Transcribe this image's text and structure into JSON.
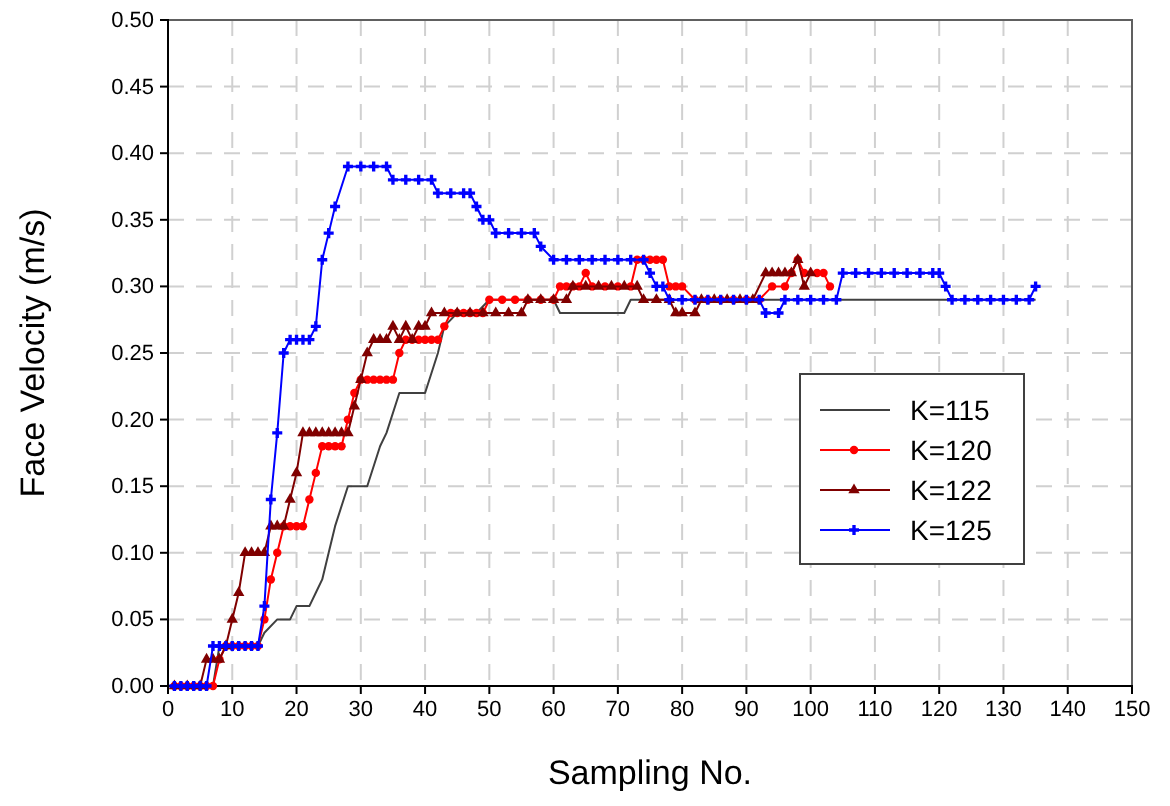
{
  "chart_data": {
    "type": "line",
    "xlabel": "Sampling No.",
    "ylabel": "Face Velocity (m/s)",
    "xlim": [
      0,
      150
    ],
    "xticks": [
      0,
      10,
      20,
      30,
      40,
      50,
      60,
      70,
      80,
      90,
      100,
      110,
      120,
      130,
      140,
      150
    ],
    "ylim": [
      0,
      0.5
    ],
    "yticks": [
      {
        "value": 0,
        "label": "0.00"
      },
      {
        "value": 0.05,
        "label": "0.05"
      },
      {
        "value": 0.1,
        "label": "0.10"
      },
      {
        "value": 0.15,
        "label": "0.15"
      },
      {
        "value": 0.2,
        "label": "0.20"
      },
      {
        "value": 0.25,
        "label": "0.25"
      },
      {
        "value": 0.3,
        "label": "0.30"
      },
      {
        "value": 0.35,
        "label": "0.35"
      },
      {
        "value": 0.4,
        "label": "0.40"
      },
      {
        "value": 0.45,
        "label": "0.45"
      },
      {
        "value": 0.5,
        "label": "0.50"
      }
    ],
    "grid": true,
    "legend": "right",
    "series": [
      {
        "name": "K=115",
        "color": "#404040",
        "marker": "none",
        "x": [
          1,
          7,
          8,
          14,
          15,
          17,
          19,
          20,
          22,
          23,
          24,
          25,
          26,
          28,
          31,
          33,
          34,
          36,
          40,
          42,
          43,
          45,
          48,
          50,
          60,
          61,
          71,
          72,
          135
        ],
        "values": [
          0,
          0,
          0.03,
          0.03,
          0.04,
          0.05,
          0.05,
          0.06,
          0.06,
          0.07,
          0.08,
          0.1,
          0.12,
          0.15,
          0.15,
          0.18,
          0.19,
          0.22,
          0.22,
          0.25,
          0.27,
          0.28,
          0.28,
          0.29,
          0.29,
          0.28,
          0.28,
          0.29,
          0.29
        ]
      },
      {
        "name": "K=120",
        "color": "#ff0000",
        "marker": "circle",
        "x": [
          1,
          2,
          3,
          4,
          5,
          6,
          7,
          8,
          9,
          10,
          11,
          12,
          13,
          14,
          15,
          16,
          17,
          18,
          19,
          20,
          21,
          22,
          23,
          24,
          25,
          26,
          27,
          28,
          29,
          30,
          31,
          32,
          33,
          34,
          35,
          36,
          37,
          38,
          39,
          40,
          41,
          42,
          43,
          44,
          45,
          46,
          47,
          48,
          49,
          50,
          52,
          54,
          56,
          58,
          60,
          61,
          62,
          63,
          64,
          65,
          66,
          68,
          70,
          72,
          73,
          74,
          75,
          76,
          77,
          78,
          79,
          80,
          82,
          84,
          86,
          88,
          90,
          92,
          94,
          96,
          97,
          98,
          99,
          101,
          102,
          103
        ],
        "values": [
          0,
          0,
          0,
          0,
          0,
          0,
          0,
          0.02,
          0.03,
          0.03,
          0.03,
          0.03,
          0.03,
          0.03,
          0.05,
          0.08,
          0.1,
          0.12,
          0.12,
          0.12,
          0.12,
          0.14,
          0.16,
          0.18,
          0.18,
          0.18,
          0.18,
          0.2,
          0.22,
          0.23,
          0.23,
          0.23,
          0.23,
          0.23,
          0.23,
          0.25,
          0.26,
          0.26,
          0.26,
          0.26,
          0.26,
          0.26,
          0.27,
          0.28,
          0.28,
          0.28,
          0.28,
          0.28,
          0.28,
          0.29,
          0.29,
          0.29,
          0.29,
          0.29,
          0.29,
          0.3,
          0.3,
          0.3,
          0.3,
          0.31,
          0.3,
          0.3,
          0.3,
          0.3,
          0.32,
          0.32,
          0.32,
          0.32,
          0.32,
          0.3,
          0.3,
          0.3,
          0.29,
          0.29,
          0.29,
          0.29,
          0.29,
          0.29,
          0.3,
          0.3,
          0.31,
          0.32,
          0.31,
          0.31,
          0.31,
          0.3
        ]
      },
      {
        "name": "K=122",
        "color": "#800000",
        "marker": "triangle",
        "x": [
          1,
          3,
          5,
          6,
          7,
          8,
          9,
          10,
          11,
          12,
          13,
          14,
          15,
          16,
          17,
          18,
          19,
          20,
          21,
          22,
          23,
          24,
          25,
          26,
          27,
          28,
          29,
          30,
          31,
          32,
          33,
          34,
          35,
          36,
          37,
          38,
          39,
          40,
          41,
          43,
          45,
          47,
          49,
          51,
          53,
          55,
          56,
          58,
          60,
          62,
          63,
          65,
          67,
          69,
          71,
          73,
          74,
          76,
          78,
          79,
          80,
          82,
          83,
          85,
          87,
          89,
          91,
          93,
          94,
          95,
          96,
          97,
          98,
          99,
          100
        ],
        "values": [
          0,
          0,
          0,
          0.02,
          0.02,
          0.02,
          0.03,
          0.05,
          0.07,
          0.1,
          0.1,
          0.1,
          0.1,
          0.12,
          0.12,
          0.12,
          0.14,
          0.16,
          0.19,
          0.19,
          0.19,
          0.19,
          0.19,
          0.19,
          0.19,
          0.19,
          0.21,
          0.23,
          0.25,
          0.26,
          0.26,
          0.26,
          0.27,
          0.26,
          0.27,
          0.26,
          0.27,
          0.27,
          0.28,
          0.28,
          0.28,
          0.28,
          0.28,
          0.28,
          0.28,
          0.28,
          0.29,
          0.29,
          0.29,
          0.29,
          0.3,
          0.3,
          0.3,
          0.3,
          0.3,
          0.3,
          0.29,
          0.29,
          0.29,
          0.28,
          0.28,
          0.28,
          0.29,
          0.29,
          0.29,
          0.29,
          0.29,
          0.31,
          0.31,
          0.31,
          0.31,
          0.31,
          0.32,
          0.3,
          0.31
        ]
      },
      {
        "name": "K=125",
        "color": "#0000ff",
        "marker": "cross",
        "x": [
          1,
          2,
          3,
          4,
          5,
          6,
          7,
          8,
          9,
          10,
          11,
          12,
          13,
          14,
          15,
          16,
          17,
          18,
          19,
          20,
          21,
          22,
          23,
          24,
          25,
          26,
          28,
          30,
          32,
          34,
          35,
          37,
          39,
          41,
          42,
          44,
          46,
          47,
          48,
          49,
          50,
          51,
          53,
          55,
          57,
          58,
          60,
          62,
          64,
          66,
          68,
          70,
          72,
          74,
          75,
          76,
          77,
          78,
          80,
          82,
          84,
          86,
          88,
          90,
          92,
          93,
          95,
          96,
          98,
          100,
          102,
          104,
          105,
          107,
          109,
          111,
          113,
          115,
          117,
          119,
          120,
          121,
          122,
          124,
          126,
          128,
          130,
          132,
          134,
          135
        ],
        "values": [
          0,
          0,
          0,
          0,
          0,
          0,
          0.03,
          0.03,
          0.03,
          0.03,
          0.03,
          0.03,
          0.03,
          0.03,
          0.06,
          0.14,
          0.19,
          0.25,
          0.26,
          0.26,
          0.26,
          0.26,
          0.27,
          0.32,
          0.34,
          0.36,
          0.39,
          0.39,
          0.39,
          0.39,
          0.38,
          0.38,
          0.38,
          0.38,
          0.37,
          0.37,
          0.37,
          0.37,
          0.36,
          0.35,
          0.35,
          0.34,
          0.34,
          0.34,
          0.34,
          0.33,
          0.32,
          0.32,
          0.32,
          0.32,
          0.32,
          0.32,
          0.32,
          0.32,
          0.31,
          0.3,
          0.3,
          0.29,
          0.29,
          0.29,
          0.29,
          0.29,
          0.29,
          0.29,
          0.29,
          0.28,
          0.28,
          0.29,
          0.29,
          0.29,
          0.29,
          0.29,
          0.31,
          0.31,
          0.31,
          0.31,
          0.31,
          0.31,
          0.31,
          0.31,
          0.31,
          0.3,
          0.29,
          0.29,
          0.29,
          0.29,
          0.29,
          0.29,
          0.29,
          0.3
        ]
      }
    ]
  }
}
